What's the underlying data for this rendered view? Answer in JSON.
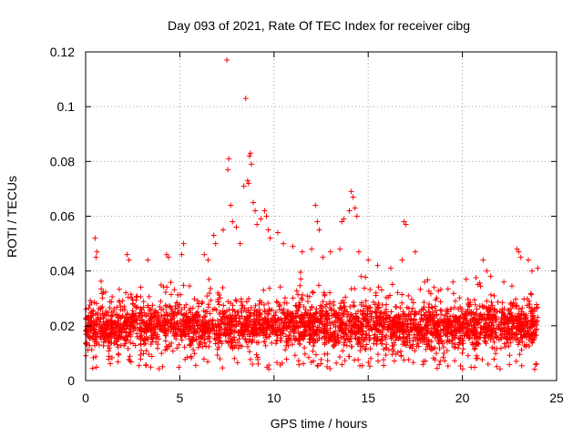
{
  "chart_data": {
    "type": "scatter",
    "title": "Day 093 of 2021, Rate Of TEC Index for receiver cibg",
    "xlabel": "GPS time / hours",
    "ylabel": "ROTI / TECUs",
    "xlim": [
      0,
      25
    ],
    "ylim": [
      0,
      0.12
    ],
    "x_ticks": [
      0,
      5,
      10,
      15,
      20,
      25
    ],
    "x_tick_labels": [
      "0",
      "5",
      "10",
      "15",
      "20",
      "25"
    ],
    "y_ticks": [
      0,
      0.02,
      0.04,
      0.06,
      0.08,
      0.1,
      0.12
    ],
    "y_tick_labels": [
      "0",
      "0.02",
      "0.04",
      "0.06",
      "0.08",
      "0.1",
      "0.12"
    ],
    "grid": true,
    "marker": "+",
    "color": "#ff0000",
    "series": [
      {
        "name": "ROTI",
        "baseline_band": {
          "x_range": [
            0,
            24
          ],
          "typical_y_range": [
            0.008,
            0.028
          ]
        },
        "points": [
          [
            0.5,
            0.052
          ],
          [
            0.6,
            0.047
          ],
          [
            0.55,
            0.045
          ],
          [
            2.2,
            0.046
          ],
          [
            2.3,
            0.044
          ],
          [
            3.3,
            0.044
          ],
          [
            4.3,
            0.046
          ],
          [
            4.4,
            0.045
          ],
          [
            5.2,
            0.05
          ],
          [
            5.1,
            0.046
          ],
          [
            6.3,
            0.046
          ],
          [
            6.5,
            0.044
          ],
          [
            6.8,
            0.053
          ],
          [
            6.9,
            0.05
          ],
          [
            7.3,
            0.055
          ],
          [
            7.5,
            0.117
          ],
          [
            7.6,
            0.081
          ],
          [
            7.55,
            0.077
          ],
          [
            7.7,
            0.064
          ],
          [
            7.8,
            0.058
          ],
          [
            8.0,
            0.056
          ],
          [
            8.2,
            0.05
          ],
          [
            8.4,
            0.071
          ],
          [
            8.5,
            0.103
          ],
          [
            8.6,
            0.073
          ],
          [
            8.7,
            0.082
          ],
          [
            8.75,
            0.083
          ],
          [
            8.8,
            0.079
          ],
          [
            8.65,
            0.072
          ],
          [
            8.9,
            0.065
          ],
          [
            9.0,
            0.062
          ],
          [
            9.1,
            0.057
          ],
          [
            9.3,
            0.059
          ],
          [
            9.5,
            0.062
          ],
          [
            9.6,
            0.06
          ],
          [
            9.7,
            0.055
          ],
          [
            9.8,
            0.052
          ],
          [
            10.2,
            0.054
          ],
          [
            10.5,
            0.05
          ],
          [
            11.0,
            0.049
          ],
          [
            11.5,
            0.047
          ],
          [
            12.0,
            0.048
          ],
          [
            12.2,
            0.064
          ],
          [
            12.3,
            0.058
          ],
          [
            12.4,
            0.055
          ],
          [
            12.6,
            0.045
          ],
          [
            13.0,
            0.047
          ],
          [
            13.5,
            0.048
          ],
          [
            13.6,
            0.058
          ],
          [
            13.7,
            0.059
          ],
          [
            14.0,
            0.062
          ],
          [
            14.1,
            0.069
          ],
          [
            14.2,
            0.067
          ],
          [
            14.3,
            0.063
          ],
          [
            14.4,
            0.06
          ],
          [
            14.5,
            0.047
          ],
          [
            15.0,
            0.044
          ],
          [
            15.5,
            0.042
          ],
          [
            16.2,
            0.041
          ],
          [
            16.8,
            0.044
          ],
          [
            16.9,
            0.058
          ],
          [
            17.0,
            0.057
          ],
          [
            17.5,
            0.047
          ],
          [
            18.0,
            0.036
          ],
          [
            18.5,
            0.034
          ],
          [
            19.5,
            0.036
          ],
          [
            20.2,
            0.037
          ],
          [
            21.1,
            0.044
          ],
          [
            21.3,
            0.04
          ],
          [
            21.5,
            0.038
          ],
          [
            22.2,
            0.036
          ],
          [
            22.9,
            0.048
          ],
          [
            23.0,
            0.047
          ],
          [
            23.1,
            0.045
          ],
          [
            23.5,
            0.044
          ],
          [
            23.7,
            0.04
          ],
          [
            24.0,
            0.041
          ]
        ]
      }
    ]
  }
}
